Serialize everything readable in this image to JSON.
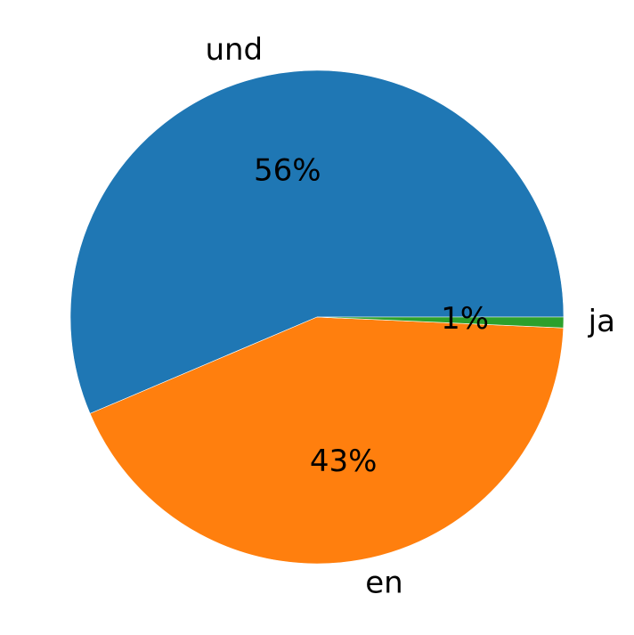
{
  "chart_data": {
    "type": "pie",
    "title": "",
    "start_angle_deg": 0,
    "direction": "counterclockwise",
    "slices": [
      {
        "label": "und",
        "value": 56.4,
        "pct_label": "56%",
        "color": "#1f77b4"
      },
      {
        "label": "en",
        "value": 42.9,
        "pct_label": "43%",
        "color": "#ff7f0e"
      },
      {
        "label": "ja",
        "value": 0.7,
        "pct_label": "1%",
        "color": "#2ca02c"
      }
    ]
  }
}
